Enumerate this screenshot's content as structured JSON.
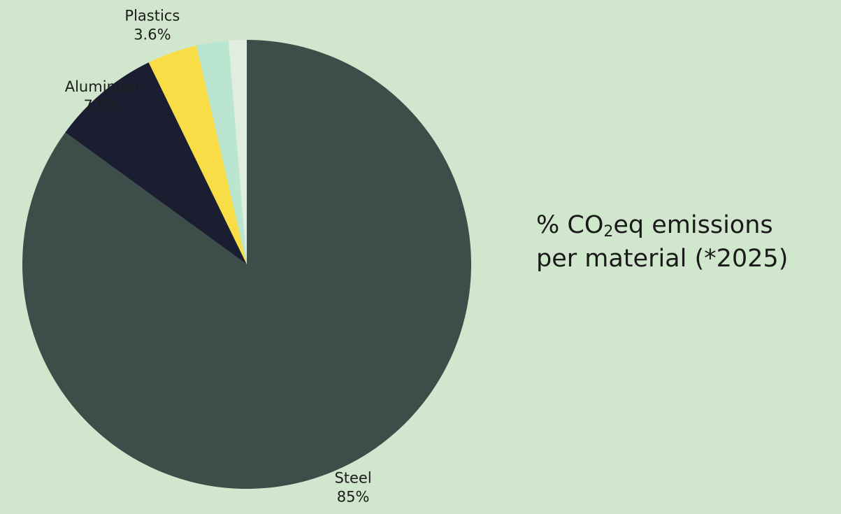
{
  "chart_data": {
    "type": "pie",
    "title": {
      "prefix": "% CO",
      "subscript": "2",
      "suffix": "eq emissions",
      "line2": "per material (*2025)"
    },
    "slices": [
      {
        "name": "Steel",
        "value": 85,
        "label": "Steel",
        "value_label": "85%",
        "color": "#3d4d49"
      },
      {
        "name": "Aluminum",
        "value": 7.8,
        "label": "Aluminum",
        "value_label": "7.8%",
        "color": "#1b1e31"
      },
      {
        "name": "Plastics",
        "value": 3.6,
        "label": "Plastics",
        "value_label": "3.6%",
        "color": "#f8dd46"
      },
      {
        "name": "",
        "value": 2.3,
        "label": "",
        "value_label": "",
        "color": "#b9e5d1"
      },
      {
        "name": "",
        "value": 1.3,
        "label": "",
        "value_label": "",
        "color": "#e0eedd"
      }
    ],
    "start_angle": "12 o'clock",
    "direction": "clockwise",
    "legend": "none"
  }
}
